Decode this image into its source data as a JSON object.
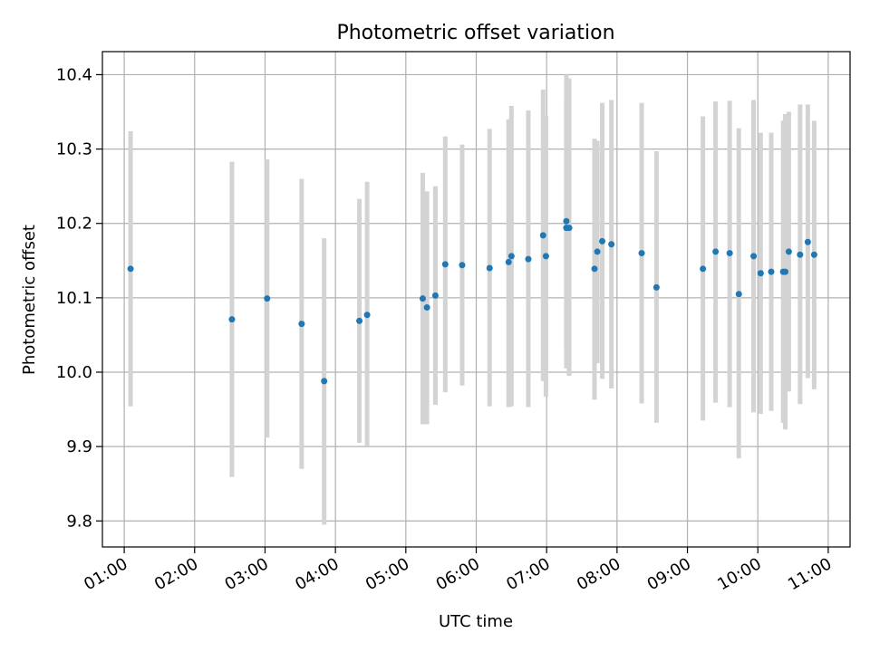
{
  "chart_data": {
    "type": "scatter",
    "title": "Photometric offset variation",
    "xlabel": "UTC time",
    "ylabel": "Photometric offset",
    "x_unit": "hours (UTC, decimal)",
    "xlim": [
      0.69,
      11.31
    ],
    "ylim": [
      9.765,
      10.431
    ],
    "grid": true,
    "x_ticks": [
      {
        "value": 1,
        "label": "01:00"
      },
      {
        "value": 2,
        "label": "02:00"
      },
      {
        "value": 3,
        "label": "03:00"
      },
      {
        "value": 4,
        "label": "04:00"
      },
      {
        "value": 5,
        "label": "05:00"
      },
      {
        "value": 6,
        "label": "06:00"
      },
      {
        "value": 7,
        "label": "07:00"
      },
      {
        "value": 8,
        "label": "08:00"
      },
      {
        "value": 9,
        "label": "09:00"
      },
      {
        "value": 10,
        "label": "10:00"
      },
      {
        "value": 11,
        "label": "11:00"
      }
    ],
    "y_ticks": [
      {
        "value": 9.8,
        "label": "9.8"
      },
      {
        "value": 9.9,
        "label": "9.9"
      },
      {
        "value": 10.0,
        "label": "10.0"
      },
      {
        "value": 10.1,
        "label": "10.1"
      },
      {
        "value": 10.2,
        "label": "10.2"
      },
      {
        "value": 10.3,
        "label": "10.3"
      },
      {
        "value": 10.4,
        "label": "10.4"
      }
    ],
    "point_color": "#1f77b4",
    "errorbar_color": "#d3d3d3",
    "points": [
      {
        "x": 1.09,
        "y": 10.139,
        "lo": 9.954,
        "hi": 10.324
      },
      {
        "x": 2.53,
        "y": 10.071,
        "lo": 9.859,
        "hi": 10.283
      },
      {
        "x": 3.03,
        "y": 10.099,
        "lo": 9.912,
        "hi": 10.286
      },
      {
        "x": 3.52,
        "y": 10.065,
        "lo": 9.87,
        "hi": 10.26
      },
      {
        "x": 3.84,
        "y": 9.988,
        "lo": 9.795,
        "hi": 10.18
      },
      {
        "x": 4.34,
        "y": 10.069,
        "lo": 9.905,
        "hi": 10.233
      },
      {
        "x": 4.45,
        "y": 10.077,
        "lo": 9.9,
        "hi": 10.256
      },
      {
        "x": 5.24,
        "y": 10.099,
        "lo": 9.93,
        "hi": 10.268
      },
      {
        "x": 5.3,
        "y": 10.087,
        "lo": 9.93,
        "hi": 10.243
      },
      {
        "x": 5.42,
        "y": 10.103,
        "lo": 9.956,
        "hi": 10.25
      },
      {
        "x": 5.56,
        "y": 10.145,
        "lo": 9.973,
        "hi": 10.317
      },
      {
        "x": 5.8,
        "y": 10.144,
        "lo": 9.982,
        "hi": 10.306
      },
      {
        "x": 6.19,
        "y": 10.14,
        "lo": 9.954,
        "hi": 10.327
      },
      {
        "x": 6.46,
        "y": 10.148,
        "lo": 9.953,
        "hi": 10.34
      },
      {
        "x": 6.5,
        "y": 10.156,
        "lo": 9.954,
        "hi": 10.358
      },
      {
        "x": 6.74,
        "y": 10.152,
        "lo": 9.953,
        "hi": 10.352
      },
      {
        "x": 6.95,
        "y": 10.184,
        "lo": 9.988,
        "hi": 10.38
      },
      {
        "x": 6.99,
        "y": 10.156,
        "lo": 9.967,
        "hi": 10.345
      },
      {
        "x": 7.28,
        "y": 10.203,
        "lo": 10.025,
        "hi": 10.364
      },
      {
        "x": 7.28,
        "y": 10.194,
        "lo": 10.005,
        "hi": 10.4
      },
      {
        "x": 7.32,
        "y": 10.194,
        "lo": 9.995,
        "hi": 10.395
      },
      {
        "x": 7.68,
        "y": 10.139,
        "lo": 9.963,
        "hi": 10.314
      },
      {
        "x": 7.72,
        "y": 10.162,
        "lo": 10.012,
        "hi": 10.311
      },
      {
        "x": 7.79,
        "y": 10.176,
        "lo": 9.991,
        "hi": 10.362
      },
      {
        "x": 7.92,
        "y": 10.172,
        "lo": 9.978,
        "hi": 10.366
      },
      {
        "x": 8.35,
        "y": 10.16,
        "lo": 9.958,
        "hi": 10.362
      },
      {
        "x": 8.56,
        "y": 10.114,
        "lo": 9.932,
        "hi": 10.297
      },
      {
        "x": 9.22,
        "y": 10.139,
        "lo": 9.935,
        "hi": 10.344
      },
      {
        "x": 9.4,
        "y": 10.162,
        "lo": 9.959,
        "hi": 10.364
      },
      {
        "x": 9.6,
        "y": 10.16,
        "lo": 9.953,
        "hi": 10.365
      },
      {
        "x": 9.73,
        "y": 10.105,
        "lo": 9.884,
        "hi": 10.328
      },
      {
        "x": 9.94,
        "y": 10.156,
        "lo": 9.946,
        "hi": 10.366
      },
      {
        "x": 10.04,
        "y": 10.133,
        "lo": 9.944,
        "hi": 10.322
      },
      {
        "x": 10.19,
        "y": 10.135,
        "lo": 9.948,
        "hi": 10.322
      },
      {
        "x": 10.36,
        "y": 10.135,
        "lo": 9.932,
        "hi": 10.338
      },
      {
        "x": 10.39,
        "y": 10.135,
        "lo": 9.923,
        "hi": 10.347
      },
      {
        "x": 10.44,
        "y": 10.162,
        "lo": 9.974,
        "hi": 10.35
      },
      {
        "x": 10.6,
        "y": 10.158,
        "lo": 9.957,
        "hi": 10.36
      },
      {
        "x": 10.71,
        "y": 10.175,
        "lo": 9.992,
        "hi": 10.36
      },
      {
        "x": 10.8,
        "y": 10.158,
        "lo": 9.977,
        "hi": 10.338
      }
    ]
  }
}
